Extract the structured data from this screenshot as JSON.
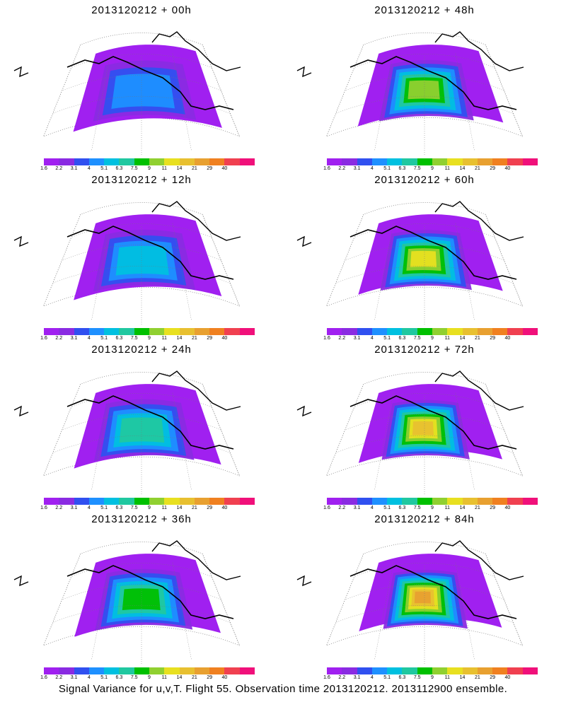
{
  "palette": [
    "#a020f0",
    "#8a2be2",
    "#3050f0",
    "#1e90ff",
    "#00c0e0",
    "#20c8a0",
    "#00c000",
    "#90d030",
    "#e8e020",
    "#e8c030",
    "#e8a030",
    "#f08020",
    "#f04050",
    "#f0107a"
  ],
  "colorbar_ticks": [
    "1.6",
    "2.2",
    "3.1",
    "4",
    "5.1",
    "6.3",
    "7.5",
    "9",
    "11",
    "14",
    "21",
    "29",
    "40"
  ],
  "panels": [
    {
      "title": "2013120212 + 00h",
      "level": 0
    },
    {
      "title": "2013120212 + 48h",
      "level": 4
    },
    {
      "title": "2013120212 + 12h",
      "level": 1
    },
    {
      "title": "2013120212 + 60h",
      "level": 5
    },
    {
      "title": "2013120212 + 24h",
      "level": 2
    },
    {
      "title": "2013120212 + 72h",
      "level": 6
    },
    {
      "title": "2013120212 + 36h",
      "level": 3
    },
    {
      "title": "2013120212 + 84h",
      "level": 7
    }
  ],
  "caption": "Signal Variance for u,v,T. Flight 55. Observation time 2013120212. 2013112900 ensemble."
}
